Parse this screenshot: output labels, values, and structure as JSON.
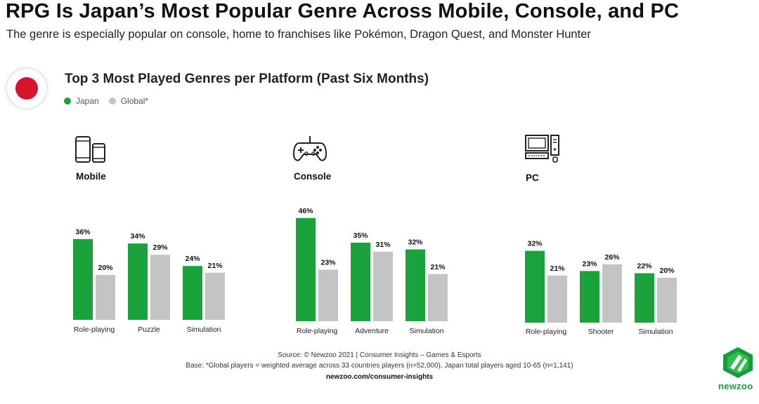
{
  "title": "RPG Is Japan’s Most Popular Genre Across Mobile, Console, and PC",
  "subtitle": "The genre is especially popular on console, home to franchises like Pokémon, Dragon Quest, and Monster Hunter",
  "chart_heading": "Top 3 Most Played Genres per Platform (Past Six Months)",
  "legend": [
    {
      "label": "Japan",
      "color": "#1aa33b"
    },
    {
      "label": "Global*",
      "color": "#c4c4c4"
    }
  ],
  "footer": {
    "source": "Source: © Newzoo 2021 | Consumer Insights – Games & Esports",
    "base": "Base: *Global players = weighted average across 33 countries players (n=52,000), Japan total players aged 10-65 (n=1,141)",
    "url": "newzoo.com/consumer-insights"
  },
  "logo_text": "newzoo",
  "icons": {
    "flag": "japan-flag-icon",
    "mobile": "mobile-phones-icon",
    "console": "gamepad-icon",
    "pc": "desktop-computer-icon",
    "logo": "newzoo-logo-icon"
  },
  "chart_data": [
    {
      "type": "bar",
      "title": "Mobile",
      "categories": [
        "Role-playing",
        "Puzzle",
        "Simulation"
      ],
      "series": [
        {
          "name": "Japan",
          "values": [
            36,
            34,
            24
          ],
          "labels": [
            "36%",
            "34%",
            "24%"
          ]
        },
        {
          "name": "Global*",
          "values": [
            20,
            29,
            21
          ],
          "labels": [
            "20%",
            "29%",
            "21%"
          ]
        }
      ]
    },
    {
      "type": "bar",
      "title": "Console",
      "categories": [
        "Role-playing",
        "Adventure",
        "Simulation"
      ],
      "series": [
        {
          "name": "Japan",
          "values": [
            46,
            35,
            32
          ],
          "labels": [
            "46%",
            "35%",
            "32%"
          ]
        },
        {
          "name": "Global*",
          "values": [
            23,
            31,
            21
          ],
          "labels": [
            "23%",
            "31%",
            "21%"
          ]
        }
      ]
    },
    {
      "type": "bar",
      "title": "PC",
      "categories": [
        "Role-playing",
        "Shooter",
        "Simulation"
      ],
      "series": [
        {
          "name": "Japan",
          "values": [
            32,
            23,
            22
          ],
          "labels": [
            "32%",
            "23%",
            "22%"
          ]
        },
        {
          "name": "Global*",
          "values": [
            21,
            26,
            20
          ],
          "labels": [
            "21%",
            "26%",
            "20%"
          ]
        }
      ]
    }
  ]
}
